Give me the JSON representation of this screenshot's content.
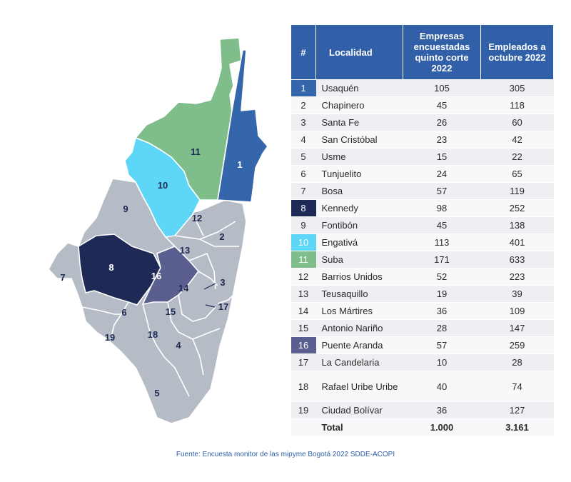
{
  "map": {
    "labels": [
      "1",
      "2",
      "3",
      "4",
      "5",
      "6",
      "7",
      "8",
      "9",
      "10",
      "11",
      "12",
      "13",
      "14",
      "15",
      "16",
      "17",
      "18",
      "19"
    ],
    "colors": {
      "grey": "#b5bcc5",
      "usaquen": "#3566ab",
      "kennedy": "#1e2a55",
      "engativa": "#5dd6f7",
      "suba": "#7fbe8a",
      "puente_aranda": "#5b5f8f"
    }
  },
  "table": {
    "headers": {
      "num": "#",
      "localidad": "Localidad",
      "empresas": "Empresas encuestadas quinto corte 2022",
      "empleados": "Empleados a octubre 2022"
    },
    "rows": [
      {
        "num": "1",
        "name": "Usaquén",
        "empresas": "105",
        "empleados": "305",
        "highlight": "#3566ab"
      },
      {
        "num": "2",
        "name": "Chapinero",
        "empresas": "45",
        "empleados": "118"
      },
      {
        "num": "3",
        "name": "Santa Fe",
        "empresas": "26",
        "empleados": "60"
      },
      {
        "num": "4",
        "name": "San Cristóbal",
        "empresas": "23",
        "empleados": "42"
      },
      {
        "num": "5",
        "name": "Usme",
        "empresas": "15",
        "empleados": "22"
      },
      {
        "num": "6",
        "name": "Tunjuelito",
        "empresas": "24",
        "empleados": "65"
      },
      {
        "num": "7",
        "name": "Bosa",
        "empresas": "57",
        "empleados": "119"
      },
      {
        "num": "8",
        "name": "Kennedy",
        "empresas": "98",
        "empleados": "252",
        "highlight": "#1e2a55"
      },
      {
        "num": "9",
        "name": "Fontibón",
        "empresas": "45",
        "empleados": "138"
      },
      {
        "num": "10",
        "name": "Engativá",
        "empresas": "113",
        "empleados": "401",
        "highlight": "#5dd6f7"
      },
      {
        "num": "11",
        "name": "Suba",
        "empresas": "171",
        "empleados": "633",
        "highlight": "#7fbe8a"
      },
      {
        "num": "12",
        "name": "Barrios Unidos",
        "empresas": "52",
        "empleados": "223"
      },
      {
        "num": "13",
        "name": "Teusaquillo",
        "empresas": "19",
        "empleados": "39"
      },
      {
        "num": "14",
        "name": "Los Mártires",
        "empresas": "36",
        "empleados": "109"
      },
      {
        "num": "15",
        "name": "Antonio Nariño",
        "empresas": "28",
        "empleados": "147"
      },
      {
        "num": "16",
        "name": "Puente Aranda",
        "empresas": "57",
        "empleados": "259",
        "highlight": "#5b5f8f"
      },
      {
        "num": "17",
        "name": "La Candelaria",
        "empresas": "10",
        "empleados": "28"
      },
      {
        "num": "18",
        "name": "Rafael Uribe Uribe",
        "empresas": "40",
        "empleados": "74"
      },
      {
        "num": "19",
        "name": "Ciudad Bolívar",
        "empresas": "36",
        "empleados": "127"
      }
    ],
    "total": {
      "label": "Total",
      "empresas": "1.000",
      "empleados": "3.161"
    }
  },
  "source": "Fuente: Encuesta monitor de las mipyme Bogotá 2022 SDDE-ACOPI"
}
